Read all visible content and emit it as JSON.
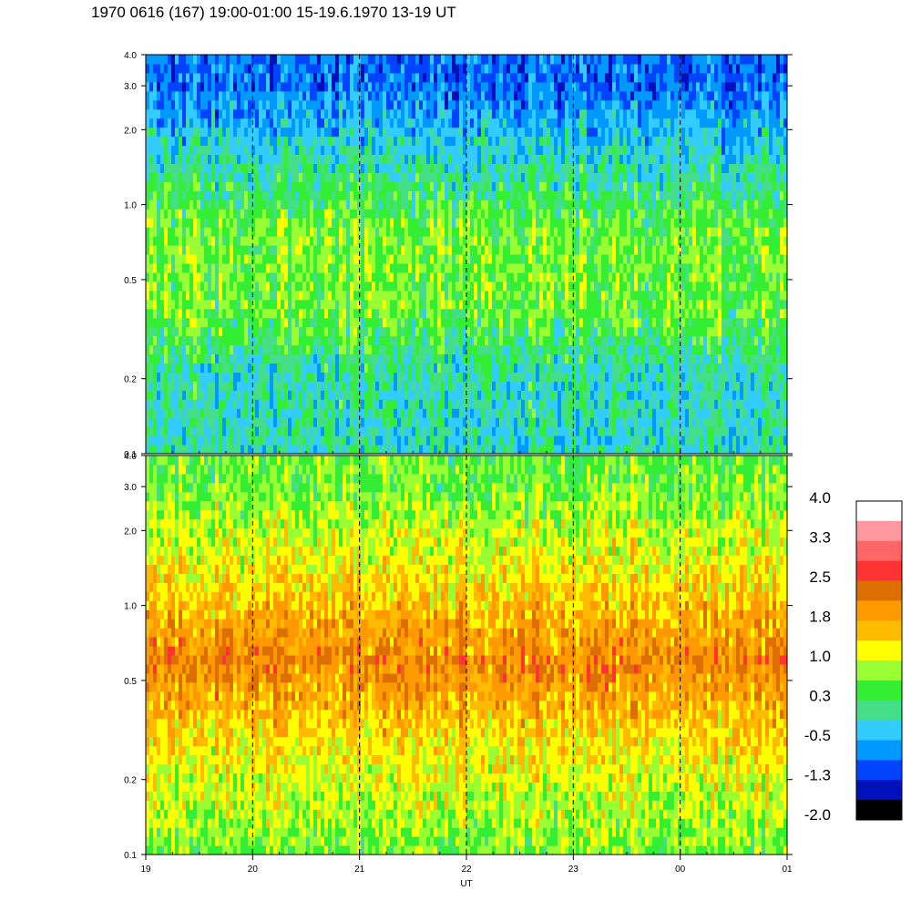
{
  "header": {
    "title": "1970 0616 (167) 19:00-01:00 15-19.6.1970  13-19 UT"
  },
  "chart_data": [
    {
      "type": "heatmap",
      "panel": "upper",
      "x_ticks": [
        "19",
        "20",
        "21",
        "22",
        "23",
        "00",
        "01"
      ],
      "y_ticks": [
        {
          "value": 0.1,
          "label": "0.1"
        },
        {
          "value": 0.2,
          "label": "0.2"
        },
        {
          "value": 0.5,
          "label": "0.5"
        },
        {
          "value": 1.0,
          "label": "1.0"
        },
        {
          "value": 2.0,
          "label": "2.0"
        },
        {
          "value": 3.0,
          "label": "3.0"
        },
        {
          "value": 4.0,
          "label": "4.0"
        }
      ],
      "ylim": [
        0.1,
        4.0
      ],
      "y_scale": "log",
      "vertical_dashed_lines_at": [
        "20",
        "21",
        "22",
        "23",
        "00"
      ],
      "dominant_level_by_frequency": [
        {
          "freq": 0.1,
          "level": 0.3
        },
        {
          "freq": 0.2,
          "level": 0.3
        },
        {
          "freq": 0.4,
          "level": 1.0
        },
        {
          "freq": 0.8,
          "level": 1.0
        },
        {
          "freq": 1.5,
          "level": 0.3
        },
        {
          "freq": 3.0,
          "level": -0.5
        }
      ]
    },
    {
      "type": "heatmap",
      "panel": "lower",
      "xlabel": "UT",
      "x_ticks": [
        "19",
        "20",
        "21",
        "22",
        "23",
        "00",
        "01"
      ],
      "y_ticks": [
        {
          "value": 0.1,
          "label": "0.1"
        },
        {
          "value": 0.2,
          "label": "0.2"
        },
        {
          "value": 0.5,
          "label": "0.5"
        },
        {
          "value": 1.0,
          "label": "1.0"
        },
        {
          "value": 2.0,
          "label": "2.0"
        },
        {
          "value": 3.0,
          "label": "3.0"
        },
        {
          "value": 4.0,
          "label": "4.0"
        }
      ],
      "ylim": [
        0.1,
        4.0
      ],
      "y_scale": "log",
      "vertical_dashed_lines_at": [
        "20",
        "21",
        "22",
        "23",
        "00"
      ],
      "dominant_level_by_frequency": [
        {
          "freq": 0.1,
          "level": 1.0
        },
        {
          "freq": 0.3,
          "level": 1.8
        },
        {
          "freq": 0.6,
          "level": 2.5
        },
        {
          "freq": 1.2,
          "level": 1.8
        },
        {
          "freq": 3.0,
          "level": 1.0
        }
      ]
    }
  ],
  "colorbar": {
    "labels": [
      "4.0",
      "3.3",
      "2.5",
      "1.8",
      "1.0",
      "0.3",
      "-0.5",
      "-1.3",
      "-2.0"
    ],
    "levels": [
      {
        "value": 4.0,
        "color": "#ffffff"
      },
      {
        "value": 3.6,
        "color": "#ff99a0"
      },
      {
        "value": 3.3,
        "color": "#ff6666"
      },
      {
        "value": 2.9,
        "color": "#ff3333"
      },
      {
        "value": 2.5,
        "color": "#dd6e00"
      },
      {
        "value": 2.1,
        "color": "#ff9900"
      },
      {
        "value": 1.8,
        "color": "#ffbb00"
      },
      {
        "value": 1.4,
        "color": "#ffff00"
      },
      {
        "value": 1.0,
        "color": "#99ff33"
      },
      {
        "value": 0.6,
        "color": "#33ee33"
      },
      {
        "value": 0.3,
        "color": "#44dd88"
      },
      {
        "value": -0.1,
        "color": "#33ccff"
      },
      {
        "value": -0.5,
        "color": "#0099ff"
      },
      {
        "value": -0.9,
        "color": "#0044ff"
      },
      {
        "value": -1.3,
        "color": "#0011bb"
      },
      {
        "value": -1.7,
        "color": "#000000"
      }
    ]
  }
}
